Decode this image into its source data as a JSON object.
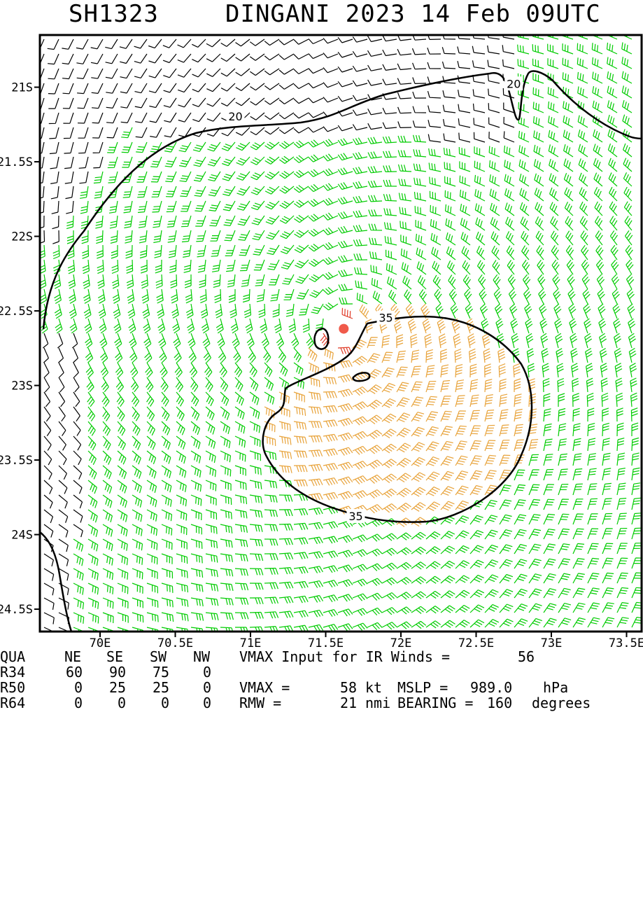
{
  "header": {
    "storm_id": "SH1323",
    "title": "DINGANI 2023 14 Feb 09UTC"
  },
  "map": {
    "lon_labels": [
      "70E",
      "70.5E",
      "71E",
      "71.5E",
      "72E",
      "72.5E",
      "73E",
      "73.5E"
    ],
    "lat_labels": [
      "21S",
      "21.5S",
      "22S",
      "22.5S",
      "23S",
      "23.5S",
      "24S",
      "24.5S"
    ],
    "lon_range": [
      69.6,
      73.6
    ],
    "lat_range": [
      -20.65,
      -24.65
    ],
    "center": {
      "lon": 71.62,
      "lat": -22.62
    },
    "contours": [
      {
        "label": "20",
        "label_positions": [
          {
            "lon": 70.9,
            "lat": -21.2
          },
          {
            "lon": 72.75,
            "lat": -20.98
          }
        ]
      },
      {
        "label": "35",
        "label_positions": [
          {
            "lon": 71.9,
            "lat": -22.55
          },
          {
            "lon": 71.7,
            "lat": -23.88
          }
        ]
      }
    ],
    "colors": {
      "below_34kt": "#000000",
      "gale_34_49kt": "#00cc00",
      "storm_50_63kt": "#e8a33a",
      "hurricane_64kt": "#e03c28",
      "center_marker": "#f05a4a",
      "contour": "#000000"
    }
  },
  "footer": {
    "quadrant_headers": [
      "QUA",
      "NE",
      "SE",
      "SW",
      "NW"
    ],
    "radii_rows": [
      {
        "label": "R34",
        "values": [
          "60",
          "90",
          "75",
          "0"
        ]
      },
      {
        "label": "R50",
        "values": [
          "0",
          "25",
          "25",
          "0"
        ]
      },
      {
        "label": "R64",
        "values": [
          "0",
          "0",
          "0",
          "0"
        ]
      }
    ],
    "vmax_input_label": "VMAX Input for IR Winds =",
    "vmax_input_value": "56",
    "vmax_label": "VMAX =",
    "vmax_value": "58",
    "vmax_unit": "kt",
    "mslp_label": "MSLP =",
    "mslp_value": "989.0",
    "mslp_unit": "hPa",
    "rmw_label": "RMW =",
    "rmw_value": "21",
    "rmw_unit": "nmi",
    "bearing_label": "BEARING =",
    "bearing_value": "160",
    "bearing_unit": "degrees"
  }
}
